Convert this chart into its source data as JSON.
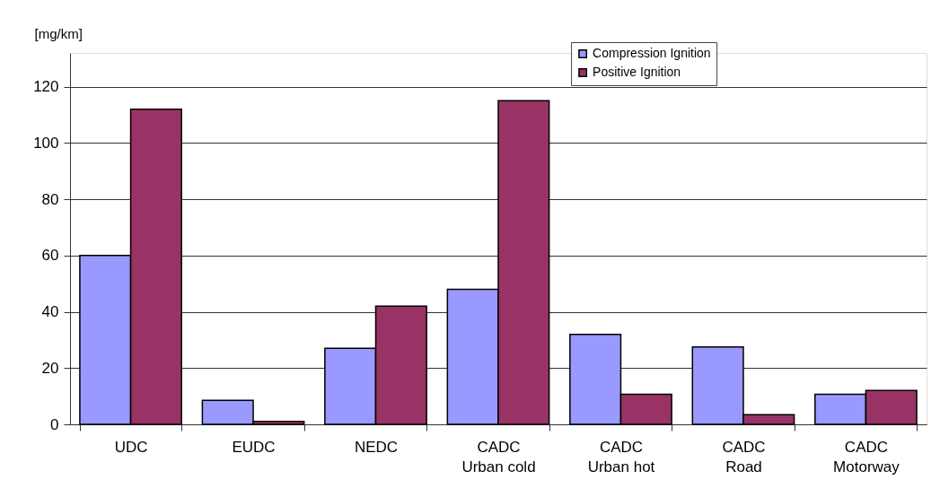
{
  "chart_data": {
    "type": "bar",
    "ylabel": "[mg/km]",
    "categories": [
      "UDC",
      "EUDC",
      "NEDC",
      "CADC\nUrban cold",
      "CADC\nUrban hot",
      "CADC\nRoad",
      "CADC\nMotorway"
    ],
    "series": [
      {
        "name": "Compression Ignition",
        "color": "#9999ff",
        "values": [
          60,
          8.5,
          27,
          48,
          32,
          27.5,
          10.7
        ]
      },
      {
        "name": "Positive Ignition",
        "color": "#993366",
        "values": [
          112,
          1,
          42,
          115,
          10.7,
          3.4,
          12
        ]
      }
    ],
    "ylim": [
      0,
      132
    ],
    "yticks": [
      0,
      20,
      40,
      60,
      80,
      100,
      120
    ],
    "grid": "y",
    "legend": "top"
  }
}
